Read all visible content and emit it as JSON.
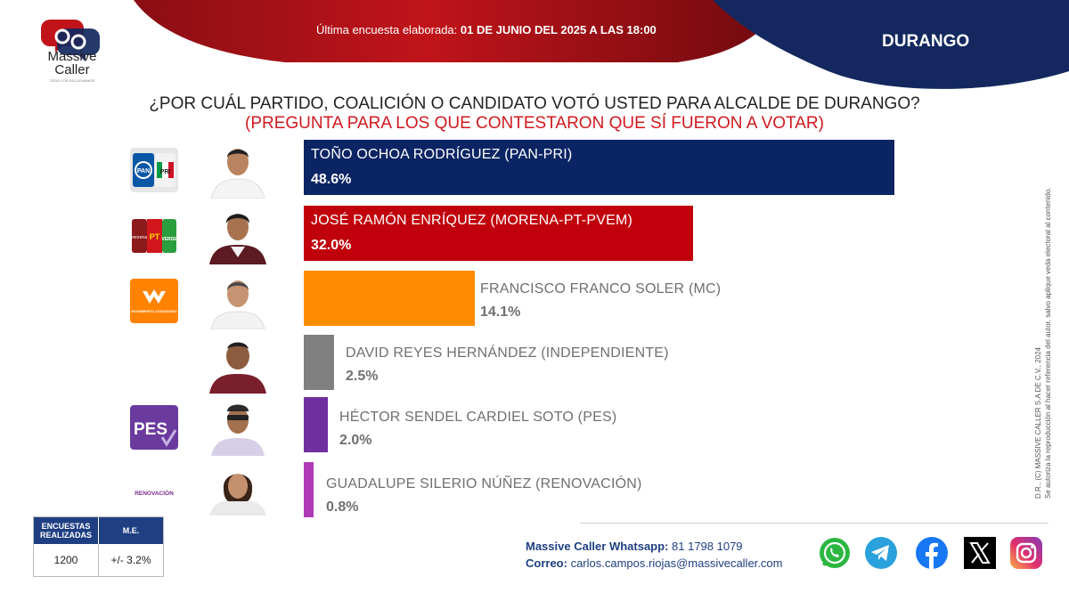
{
  "header": {
    "survey_label": "Última encuesta elaborada:",
    "survey_date": "01 DE JUNIO DEL 2025 A LAS 18:00",
    "state": "DURANGO",
    "colors": {
      "red": "#c0141a",
      "dark_red": "#7d0d12",
      "navy": "#14285f"
    }
  },
  "logo": {
    "name_line1": "Massive",
    "name_line2": "Caller",
    "tagline": "TODO LOS ESCUCHAMOS"
  },
  "question": {
    "line1": "¿POR CUÁL PARTIDO, COALICIÓN O CANDIDATO VOTÓ USTED PARA ALCALDE DE DURANGO?",
    "line2": "(PREGUNTA PARA LOS QUE CONTESTARON QUE SÍ FUERON A VOTAR)"
  },
  "chart_data": {
    "type": "bar",
    "orientation": "horizontal",
    "title": "¿POR CUÁL PARTIDO, COALICIÓN O CANDIDATO VOTÓ USTED PARA ALCALDE DE DURANGO?",
    "categories": [
      "TOÑO OCHOA RODRÍGUEZ (PAN-PRI)",
      "JOSÉ RAMÓN ENRÍQUEZ (MORENA-PT-PVEM)",
      "FRANCISCO FRANCO SOLER (MC)",
      "DAVID REYES HERNÁNDEZ (INDEPENDIENTE)",
      "HÉCTOR SENDEL CARDIEL SOTO (PES)",
      "GUADALUPE SILERIO NÚÑEZ (RENOVACIÓN)"
    ],
    "values": [
      48.6,
      32.0,
      14.1,
      2.5,
      2.0,
      0.8
    ],
    "value_labels": [
      "48.6%",
      "32.0%",
      "14.1%",
      "2.5%",
      "2.0%",
      "0.8%"
    ],
    "bar_colors": [
      "#0b2463",
      "#c0000b",
      "#ff8c00",
      "#808080",
      "#6f2f9f",
      "#b03bb6"
    ],
    "party_logos": [
      "pan-pri-logo",
      "morena-pt-pvem-logo",
      "movimiento-ciudadano-logo",
      "",
      "pes-logo",
      "renovacion-logo"
    ]
  },
  "party_texts": {
    "pan": "PAN",
    "pri": "PRI",
    "morena": "morena",
    "pt": "PT",
    "verde": "VERDE",
    "mc": "MOVIMIENTO CIUDADANO",
    "pes": "PES",
    "renovacion": "RENOVACIÓN"
  },
  "copyright": {
    "line1": "D.R., (C) MASSIVE CALLER S.A DE C.V., 2024",
    "line2": "Se autoriza la reproducción al hacer referencia del autor, salvo aplique veda electoral al contenido."
  },
  "stats": {
    "col1_header": "ENCUESTAS REALIZADAS",
    "col2_header": "M.E.",
    "col1_value": "1200",
    "col2_value": "+/- 3.2%"
  },
  "contact": {
    "whatsapp_label": "Massive Caller Whatsapp:",
    "whatsapp_value": "81 1798 1079",
    "email_label": "Correo:",
    "email_value": "carlos.campos.riojas@massivecaller.com"
  },
  "social_icons": [
    "whatsapp-icon",
    "telegram-icon",
    "facebook-icon",
    "x-icon",
    "instagram-icon"
  ]
}
